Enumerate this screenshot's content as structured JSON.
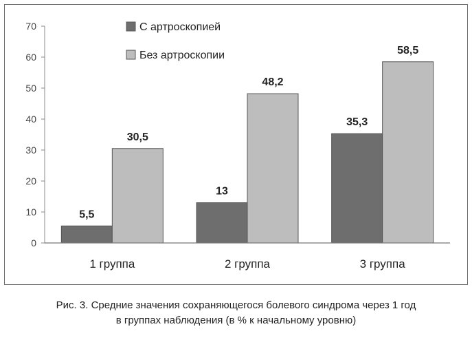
{
  "chart_data": {
    "type": "bar",
    "categories": [
      "1 группа",
      "2 группа",
      "3 группа"
    ],
    "series": [
      {
        "name": "С артроскопией",
        "values": [
          5.5,
          13,
          35.3
        ],
        "labels": [
          "5,5",
          "13",
          "35,3"
        ],
        "color": "#6e6e6e"
      },
      {
        "name": "Без артроскопии",
        "values": [
          30.5,
          48.2,
          58.5
        ],
        "labels": [
          "30,5",
          "48,2",
          "58,5"
        ],
        "color": "#bdbdbd"
      }
    ],
    "ylim": [
      0,
      70
    ],
    "yticks": [
      0,
      10,
      20,
      30,
      40,
      50,
      60,
      70
    ],
    "grid": false,
    "legend": "top-center"
  },
  "caption": {
    "line1": "Рис. 3. Средние значения сохраняющегося болевого синдрома через 1 год",
    "line2": "в группах наблюдения (в % к начальному уровню)"
  }
}
